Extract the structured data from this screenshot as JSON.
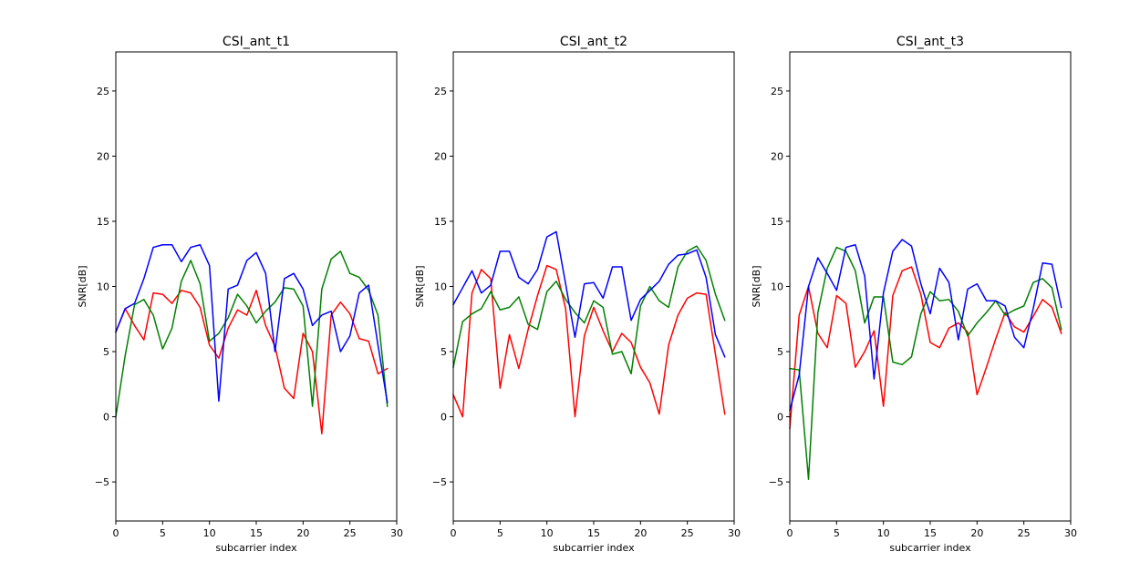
{
  "chart_data": [
    {
      "type": "line",
      "title": "CSI_ant_t1",
      "xlabel": "subcarrier index",
      "ylabel": "SNR[dB]",
      "xlim": [
        0,
        30
      ],
      "ylim": [
        -8,
        28
      ],
      "xticks": [
        "0",
        "5",
        "10",
        "15",
        "20",
        "25",
        "30"
      ],
      "yticks": [
        "−5",
        "0",
        "5",
        "10",
        "15",
        "20",
        "25"
      ],
      "grid": false,
      "x": [
        0,
        1,
        2,
        3,
        4,
        5,
        6,
        7,
        8,
        9,
        10,
        11,
        12,
        13,
        14,
        15,
        16,
        17,
        18,
        19,
        20,
        21,
        22,
        23,
        24,
        25,
        26,
        27,
        28,
        29
      ],
      "series": [
        {
          "color": "#ff0000",
          "values": [
            6.5,
            8.3,
            7.0,
            5.9,
            9.5,
            9.4,
            8.7,
            9.7,
            9.5,
            8.4,
            5.5,
            4.5,
            6.8,
            8.2,
            7.8,
            9.7,
            7.0,
            5.4,
            2.2,
            1.4,
            6.4,
            5.0,
            -1.3,
            7.8,
            8.8,
            7.9,
            6.0,
            5.8,
            3.3,
            3.7
          ]
        },
        {
          "color": "#008000",
          "values": [
            0.0,
            4.7,
            8.6,
            9.0,
            7.8,
            5.2,
            6.8,
            10.4,
            12.0,
            10.2,
            5.8,
            6.4,
            7.6,
            9.4,
            8.5,
            7.2,
            8.1,
            8.8,
            9.9,
            9.8,
            8.5,
            0.8,
            9.8,
            12.1,
            12.7,
            11.0,
            10.7,
            9.7,
            7.8,
            0.8
          ]
        },
        {
          "color": "#0000ff",
          "values": [
            6.5,
            8.3,
            8.7,
            10.6,
            13.0,
            13.2,
            13.2,
            11.9,
            13.0,
            13.2,
            11.6,
            1.2,
            9.8,
            10.1,
            12.0,
            12.6,
            11.0,
            5.0,
            10.6,
            11.0,
            9.8,
            7.0,
            7.8,
            8.1,
            5.0,
            6.2,
            9.5,
            10.1,
            5.5,
            1.1
          ]
        }
      ]
    },
    {
      "type": "line",
      "title": "CSI_ant_t2",
      "xlabel": "subcarrier index",
      "ylabel": "SNR[dB]",
      "xlim": [
        0,
        30
      ],
      "ylim": [
        -8,
        28
      ],
      "xticks": [
        "0",
        "5",
        "10",
        "15",
        "20",
        "25",
        "30"
      ],
      "yticks": [
        "−5",
        "0",
        "5",
        "10",
        "15",
        "20",
        "25"
      ],
      "grid": false,
      "x": [
        0,
        1,
        2,
        3,
        4,
        5,
        6,
        7,
        8,
        9,
        10,
        11,
        12,
        13,
        14,
        15,
        16,
        17,
        18,
        19,
        20,
        21,
        22,
        23,
        24,
        25,
        26,
        27,
        28,
        29
      ],
      "series": [
        {
          "color": "#ff0000",
          "values": [
            1.7,
            0.0,
            9.5,
            11.3,
            10.6,
            2.2,
            6.3,
            3.7,
            6.7,
            9.3,
            11.6,
            11.3,
            8.3,
            0.0,
            6.2,
            8.4,
            6.6,
            5.0,
            6.4,
            5.7,
            3.8,
            2.6,
            0.2,
            5.5,
            7.8,
            9.1,
            9.5,
            9.4,
            4.8,
            0.2
          ]
        },
        {
          "color": "#008000",
          "values": [
            3.8,
            7.3,
            7.9,
            8.3,
            9.6,
            8.2,
            8.4,
            9.2,
            7.1,
            6.7,
            9.6,
            10.4,
            9.0,
            8.0,
            7.2,
            8.9,
            8.4,
            4.8,
            5.0,
            3.3,
            8.5,
            10.0,
            8.9,
            8.4,
            11.5,
            12.7,
            13.1,
            12.0,
            9.4,
            7.4
          ]
        },
        {
          "color": "#0000ff",
          "values": [
            8.6,
            9.9,
            11.2,
            9.5,
            10.1,
            12.7,
            12.7,
            10.7,
            10.2,
            11.3,
            13.8,
            14.2,
            10.2,
            6.1,
            10.2,
            10.3,
            9.1,
            11.5,
            11.5,
            7.4,
            9.0,
            9.7,
            10.4,
            11.7,
            12.4,
            12.5,
            12.8,
            10.7,
            6.3,
            4.6
          ]
        }
      ]
    },
    {
      "type": "line",
      "title": "CSI_ant_t3",
      "xlabel": "subcarrier index",
      "ylabel": "SNR[dB]",
      "xlim": [
        0,
        30
      ],
      "ylim": [
        -8,
        28
      ],
      "xticks": [
        "0",
        "5",
        "10",
        "15",
        "20",
        "25",
        "30"
      ],
      "yticks": [
        "−5",
        "0",
        "5",
        "10",
        "15",
        "20",
        "25"
      ],
      "grid": false,
      "x": [
        0,
        1,
        2,
        3,
        4,
        5,
        6,
        7,
        8,
        9,
        10,
        11,
        12,
        13,
        14,
        15,
        16,
        17,
        18,
        19,
        20,
        21,
        22,
        23,
        24,
        25,
        26,
        27,
        28,
        29
      ],
      "series": [
        {
          "color": "#ff0000",
          "values": [
            -0.9,
            7.8,
            10.0,
            6.4,
            5.3,
            9.3,
            8.7,
            3.8,
            5.0,
            6.6,
            0.8,
            9.3,
            11.2,
            11.5,
            9.4,
            5.7,
            5.3,
            6.8,
            7.2,
            6.5,
            1.7,
            3.8,
            6.0,
            8.0,
            6.9,
            6.5,
            7.7,
            9.0,
            8.4,
            6.4
          ]
        },
        {
          "color": "#008000",
          "values": [
            3.7,
            3.6,
            -4.8,
            8.0,
            11.4,
            13.0,
            12.7,
            11.2,
            7.2,
            9.2,
            9.2,
            4.2,
            4.0,
            4.6,
            7.9,
            9.6,
            8.9,
            9.0,
            8.1,
            6.2,
            7.2,
            8.0,
            8.9,
            7.8,
            8.2,
            8.5,
            10.3,
            10.6,
            9.9,
            6.7
          ]
        },
        {
          "color": "#0000ff",
          "values": [
            0.5,
            3.2,
            10.0,
            12.2,
            11.0,
            9.7,
            13.0,
            13.2,
            10.8,
            2.9,
            9.5,
            12.7,
            13.6,
            13.1,
            10.2,
            7.9,
            11.4,
            10.3,
            5.9,
            9.8,
            10.2,
            8.9,
            8.9,
            8.5,
            6.1,
            5.3,
            8.3,
            11.8,
            11.7,
            8.4
          ]
        }
      ]
    }
  ]
}
